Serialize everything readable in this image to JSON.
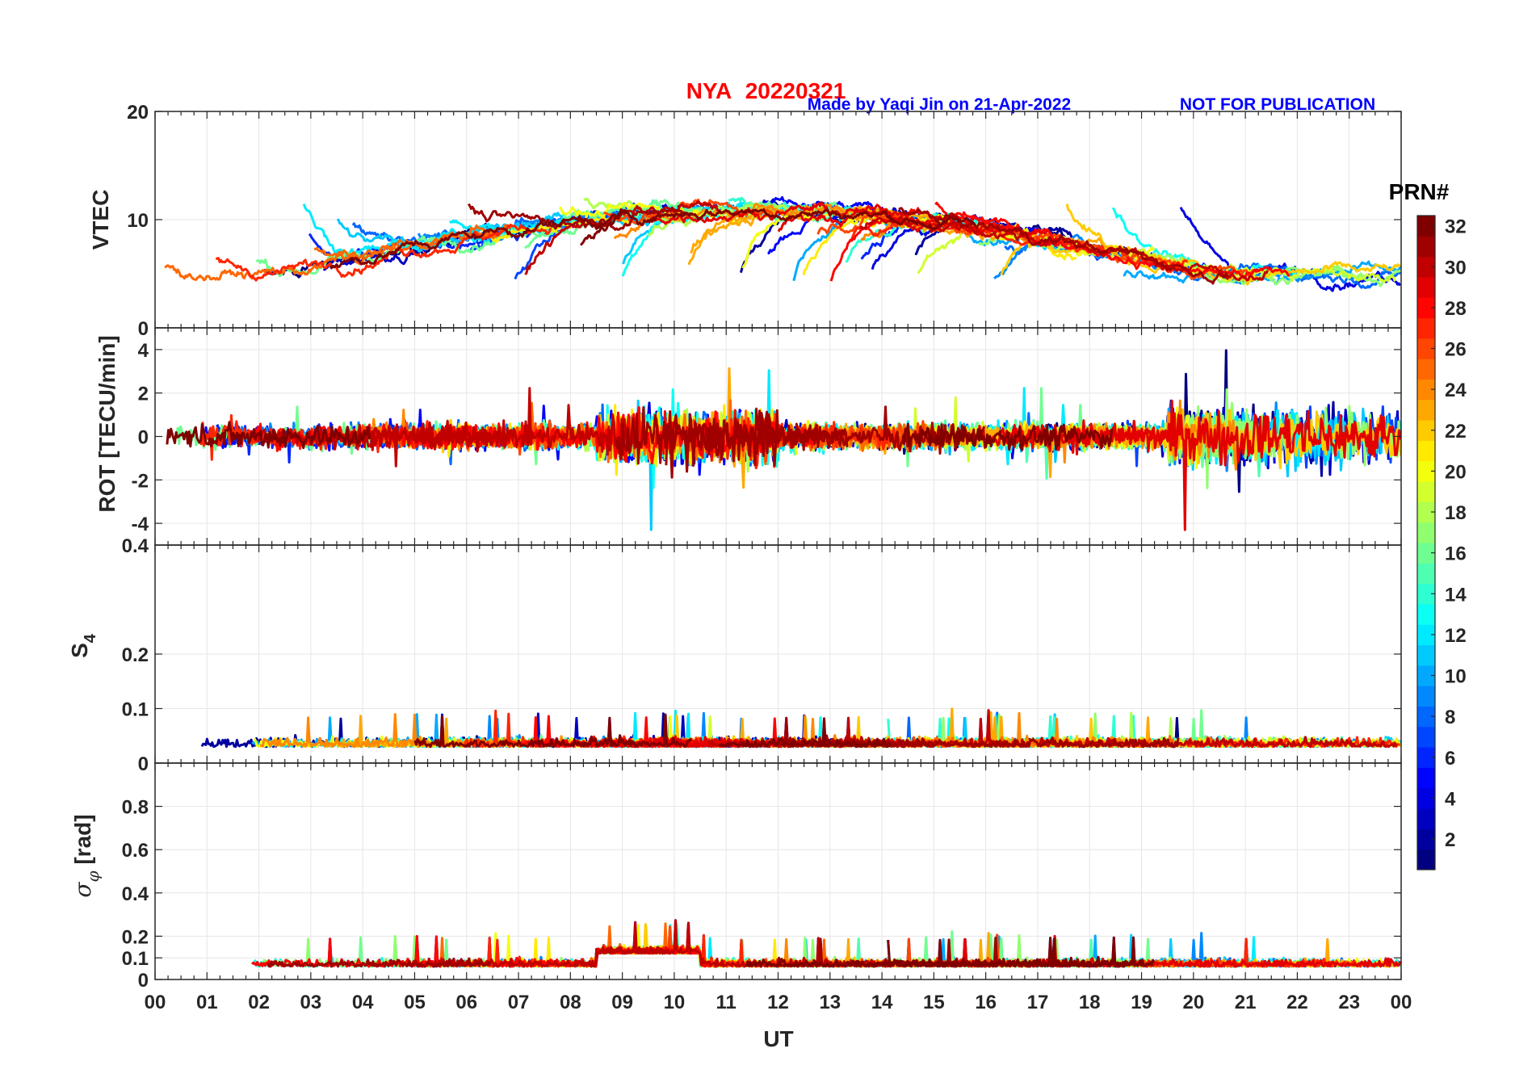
{
  "header": {
    "station": "NYA",
    "date": "20220321",
    "credit": "Made by Yaqi Jin on 21-Apr-2022",
    "notice": "NOT FOR PUBLICATION",
    "title_color": "#ff0000",
    "credit_color": "#0000ff"
  },
  "chart_data": [
    {
      "type": "line",
      "panel": "vtec",
      "ylabel": "VTEC",
      "ylim": [
        0,
        20
      ],
      "yticks": [
        0,
        10,
        20
      ],
      "xlim": [
        0,
        24
      ],
      "grid": true,
      "series_note": "one line per GPS satellite PRN 1-32, colored by PRN"
    },
    {
      "type": "line",
      "panel": "rot",
      "ylabel": "ROT [TECU/min]",
      "ylim": [
        -5,
        5
      ],
      "yticks": [
        -4,
        -2,
        0,
        2,
        4
      ],
      "xlim": [
        0,
        24
      ],
      "grid": true
    },
    {
      "type": "line",
      "panel": "s4",
      "ylabel_main": "S",
      "ylabel_sub": "4",
      "ylim": [
        0,
        0.4
      ],
      "yticks": [
        0,
        0.1,
        0.2
      ],
      "ytick_labels": [
        "0",
        "0.1",
        "0.2"
      ],
      "top_label": "0.4",
      "xlim": [
        0,
        24
      ],
      "grid": true
    },
    {
      "type": "line",
      "panel": "sigma",
      "ylabel_main": "σ",
      "ylabel_sub": "φ",
      "ylabel_unit": " [rad]",
      "ylim": [
        0,
        1
      ],
      "yticks": [
        0,
        0.1,
        0.2,
        0.4,
        0.6,
        0.8
      ],
      "ytick_labels": [
        "0",
        "0.1",
        "0.2",
        "0.4",
        "0.6",
        "0.8"
      ],
      "xlim": [
        0,
        24
      ],
      "xlabel": "UT",
      "xtick_labels": [
        "00",
        "01",
        "02",
        "03",
        "04",
        "05",
        "06",
        "07",
        "08",
        "09",
        "10",
        "11",
        "12",
        "13",
        "14",
        "15",
        "16",
        "17",
        "18",
        "19",
        "20",
        "21",
        "22",
        "23",
        "00"
      ],
      "grid": true
    }
  ],
  "colorbar": {
    "title": "PRN#",
    "range": [
      1,
      32
    ],
    "ticks": [
      2,
      4,
      6,
      8,
      10,
      12,
      14,
      16,
      18,
      20,
      22,
      24,
      26,
      28,
      30,
      32
    ],
    "colormap": "jet"
  }
}
